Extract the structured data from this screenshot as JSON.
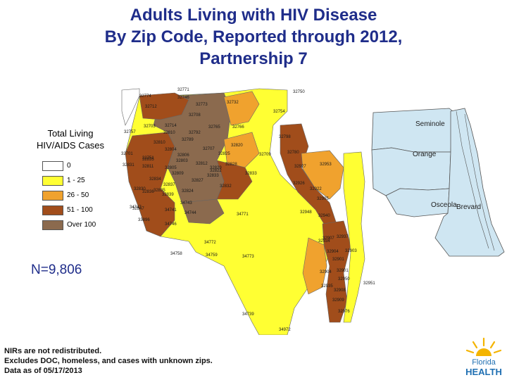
{
  "title": {
    "line1": "Adults Living with HIV Disease",
    "line2": "By Zip Code, Reported through 2012,",
    "line3": "Partnership 7"
  },
  "legend": {
    "title_line1": "Total Living",
    "title_line2": "HIV/AIDS Cases",
    "items": [
      {
        "label": "0",
        "color": "#ffffff"
      },
      {
        "label": "1 - 25",
        "color": "#ffff33"
      },
      {
        "label": "26 - 50",
        "color": "#f0a22e"
      },
      {
        "label": "51 - 100",
        "color": "#a14d1b"
      },
      {
        "label": "Over 100",
        "color": "#8b6a4e"
      }
    ]
  },
  "count_label": "N=9,806",
  "notes": {
    "line1": "NIRs are not redistributed.",
    "line2": "Excludes DOC, homeless, and cases with unknown zips.",
    "line3": "Data as of 05/17/2013"
  },
  "counties": [
    "Seminole",
    "Orange",
    "Osceola",
    "Brevard"
  ],
  "zip_labels": [
    "32771",
    "32774",
    "32746",
    "32712",
    "32773",
    "32732",
    "32750",
    "32798",
    "32754",
    "32703",
    "32714",
    "32757",
    "32810",
    "32810",
    "32708",
    "32765",
    "32766",
    "32751",
    "32792",
    "32701",
    "32804",
    "32820",
    "32707",
    "32789",
    "32803",
    "32806",
    "32825",
    "32709",
    "32780",
    "32835",
    "32805",
    "32828",
    "32822",
    "32811",
    "32831",
    "32833",
    "32927",
    "32953",
    "32809",
    "32812",
    "32829",
    "32837",
    "32827",
    "32824",
    "32832",
    "32926",
    "32922",
    "32830",
    "32836",
    "32839",
    "32834",
    "32847",
    "32833",
    "32835",
    "34741",
    "34743",
    "34746",
    "34744",
    "34747",
    "34771",
    "34758",
    "34772",
    "32905",
    "32940",
    "32907",
    "32904",
    "32901",
    "32904",
    "32901",
    "32935",
    "32934",
    "32937",
    "32903",
    "32950",
    "32951",
    "32976",
    "32909",
    "32908",
    "34739",
    "34773",
    "34972",
    "33896",
    "34759",
    "32948"
  ],
  "logo": {
    "text_line1": "Florida",
    "text_line2": "HEALTH",
    "sun_color": "#f4b400",
    "text_color": "#1f6fb2"
  },
  "colors": {
    "title": "#1f2d8a",
    "state_blue": "#cfe6f2",
    "county_line": "#555555"
  }
}
